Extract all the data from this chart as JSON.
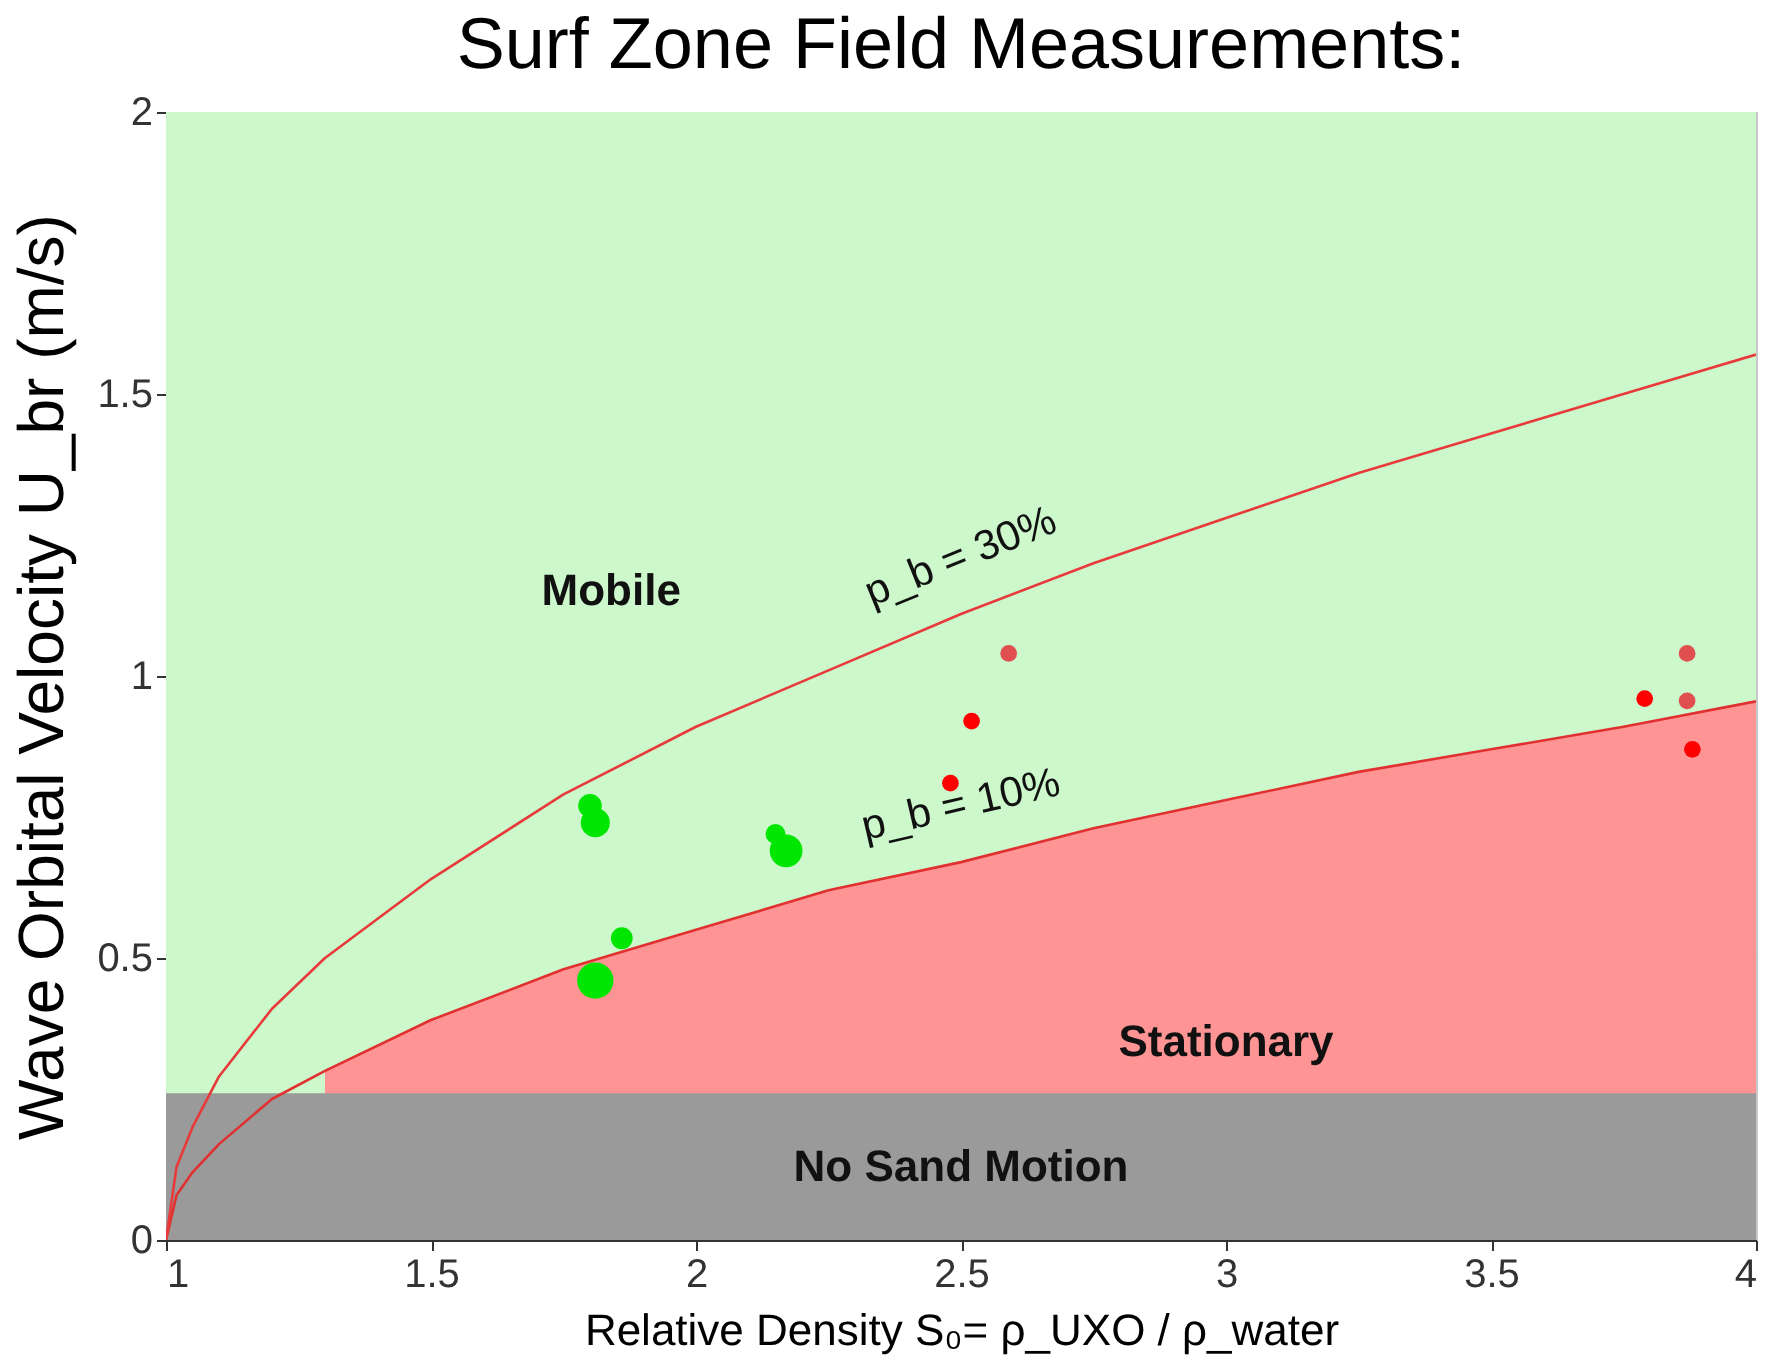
{
  "chart_data": {
    "type": "scatter",
    "title": "Surf Zone Field Measurements:",
    "xlabel": "Relative Density S₀= ρ_UXO / ρ_water",
    "ylabel": "Wave Orbital Velocity U_br (m/s)",
    "xlim": [
      1,
      4
    ],
    "xticks": [
      1,
      1.5,
      2,
      2.5,
      3,
      3.5,
      4
    ],
    "ylim": [
      0,
      2
    ],
    "yticks": [
      0,
      0.5,
      1,
      1.5,
      2
    ],
    "grid": true,
    "bands": [
      {
        "axis": "y",
        "from": 0,
        "to": 2,
        "color": "#ccf8cc",
        "label": "Mobile"
      },
      {
        "axis": "y",
        "from": 0,
        "to": 0.26,
        "color": "#9a9a9a",
        "label": "No Sand Motion"
      }
    ],
    "series": [
      {
        "type": "area",
        "name": "Stationary",
        "color": "#ff9494",
        "x": [
          1.3,
          1.5,
          1.75,
          2,
          2.25,
          2.5,
          2.75,
          3,
          3.25,
          3.5,
          3.75,
          4
        ],
        "values": [
          0.3,
          0.39,
          0.48,
          0.55,
          0.62,
          0.67,
          0.73,
          0.78,
          0.83,
          0.87,
          0.91,
          0.955
        ]
      },
      {
        "type": "line",
        "name": "p_b = 10%",
        "color": "#e03030",
        "x": [
          1,
          1.02,
          1.05,
          1.1,
          1.2,
          1.3,
          1.5,
          1.75,
          2,
          2.25,
          2.5,
          2.75,
          3,
          3.25,
          3.5,
          3.75,
          4
        ],
        "values": [
          0,
          0.08,
          0.12,
          0.17,
          0.25,
          0.3,
          0.39,
          0.48,
          0.55,
          0.62,
          0.67,
          0.73,
          0.78,
          0.83,
          0.87,
          0.91,
          0.955
        ]
      },
      {
        "type": "line",
        "name": "p_b = 30%",
        "color": "#e83a3a",
        "x": [
          1,
          1.02,
          1.05,
          1.1,
          1.2,
          1.3,
          1.5,
          1.75,
          2,
          2.25,
          2.5,
          2.75,
          3,
          3.25,
          3.5,
          3.75,
          4
        ],
        "values": [
          0,
          0.13,
          0.2,
          0.29,
          0.41,
          0.5,
          0.64,
          0.79,
          0.91,
          1.01,
          1.11,
          1.2,
          1.28,
          1.36,
          1.43,
          1.5,
          1.57
        ]
      },
      {
        "type": "bubble",
        "color": "#00e600",
        "marker": "circle",
        "x": [
          1.8,
          1.81,
          1.86,
          1.81,
          2.15,
          2.17
        ],
        "values": [
          0.77,
          0.74,
          0.535,
          0.46,
          0.72,
          0.69
        ],
        "sizes": [
          0.42,
          0.64,
          0.36,
          1,
          0.3,
          0.81
        ]
      },
      {
        "color": "#ff0000",
        "marker": "circle",
        "x": [
          2.48,
          2.52,
          3.79,
          3.88
        ],
        "values": [
          0.81,
          0.92,
          0.96,
          0.87
        ]
      },
      {
        "color": "#e05050",
        "marker": "circle",
        "x": [
          2.59,
          3.87,
          3.87
        ],
        "values": [
          1.04,
          1.04,
          0.956
        ]
      }
    ]
  }
}
